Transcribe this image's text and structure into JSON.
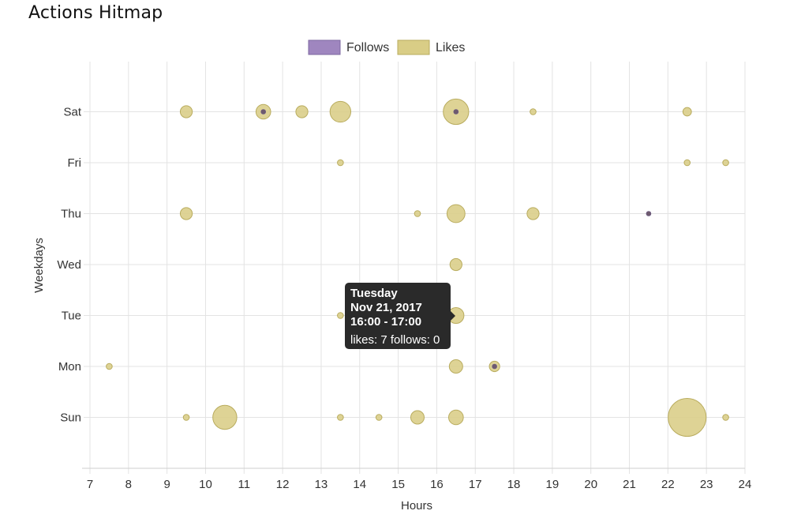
{
  "chart_data": {
    "type": "scatter",
    "title": "Actions Hitmap",
    "xlabel": "Hours",
    "ylabel": "Weekdays",
    "xlim": [
      7,
      24
    ],
    "x_ticks": [
      "7",
      "8",
      "9",
      "10",
      "11",
      "12",
      "13",
      "14",
      "15",
      "16",
      "17",
      "18",
      "19",
      "20",
      "21",
      "22",
      "23",
      "24"
    ],
    "y_categories": [
      "Sun",
      "Mon",
      "Tue",
      "Wed",
      "Thu",
      "Fri",
      "Sat"
    ],
    "legend": {
      "placement": "top-center",
      "entries": [
        "Follows",
        "Likes"
      ]
    },
    "grid": true,
    "colors": {
      "follows": "#9f86bf",
      "likes": "#d9cd86",
      "likes_border": "#b9ac5e",
      "follows_border": "#6b5a86",
      "follows_dot": "#6e5a6e"
    },
    "series": [
      {
        "name": "Likes",
        "points": [
          {
            "x": 9.5,
            "day": "Sat",
            "v": 4
          },
          {
            "x": 11.5,
            "day": "Sat",
            "v": 6
          },
          {
            "x": 12.5,
            "day": "Sat",
            "v": 4
          },
          {
            "x": 13.5,
            "day": "Sat",
            "v": 12
          },
          {
            "x": 16.5,
            "day": "Sat",
            "v": 18
          },
          {
            "x": 18.5,
            "day": "Sat",
            "v": 1
          },
          {
            "x": 22.5,
            "day": "Sat",
            "v": 2
          },
          {
            "x": 13.5,
            "day": "Fri",
            "v": 1
          },
          {
            "x": 22.5,
            "day": "Fri",
            "v": 1
          },
          {
            "x": 23.5,
            "day": "Fri",
            "v": 1
          },
          {
            "x": 9.5,
            "day": "Thu",
            "v": 4
          },
          {
            "x": 15.5,
            "day": "Thu",
            "v": 1
          },
          {
            "x": 16.5,
            "day": "Thu",
            "v": 9
          },
          {
            "x": 18.5,
            "day": "Thu",
            "v": 4
          },
          {
            "x": 16.5,
            "day": "Wed",
            "v": 4
          },
          {
            "x": 13.5,
            "day": "Tue",
            "v": 1
          },
          {
            "x": 16.5,
            "day": "Tue",
            "v": 7
          },
          {
            "x": 7.5,
            "day": "Mon",
            "v": 1
          },
          {
            "x": 16.5,
            "day": "Mon",
            "v": 5
          },
          {
            "x": 17.5,
            "day": "Mon",
            "v": 3
          },
          {
            "x": 9.5,
            "day": "Sun",
            "v": 1
          },
          {
            "x": 10.5,
            "day": "Sun",
            "v": 16
          },
          {
            "x": 13.5,
            "day": "Sun",
            "v": 1
          },
          {
            "x": 14.5,
            "day": "Sun",
            "v": 1
          },
          {
            "x": 15.5,
            "day": "Sun",
            "v": 5
          },
          {
            "x": 16.5,
            "day": "Sun",
            "v": 6
          },
          {
            "x": 22.5,
            "day": "Sun",
            "v": 40
          },
          {
            "x": 23.5,
            "day": "Sun",
            "v": 1
          }
        ]
      },
      {
        "name": "Follows",
        "points": [
          {
            "x": 11.5,
            "day": "Sat",
            "v": 1
          },
          {
            "x": 16.5,
            "day": "Sat",
            "v": 1
          },
          {
            "x": 21.5,
            "day": "Thu",
            "v": 1
          },
          {
            "x": 17.5,
            "day": "Mon",
            "v": 1
          }
        ]
      }
    ]
  },
  "tooltip": {
    "day": "Tuesday",
    "date": "Nov 21, 2017",
    "time": "16:00 - 17:00",
    "body": "likes: 7 follows: 0"
  }
}
